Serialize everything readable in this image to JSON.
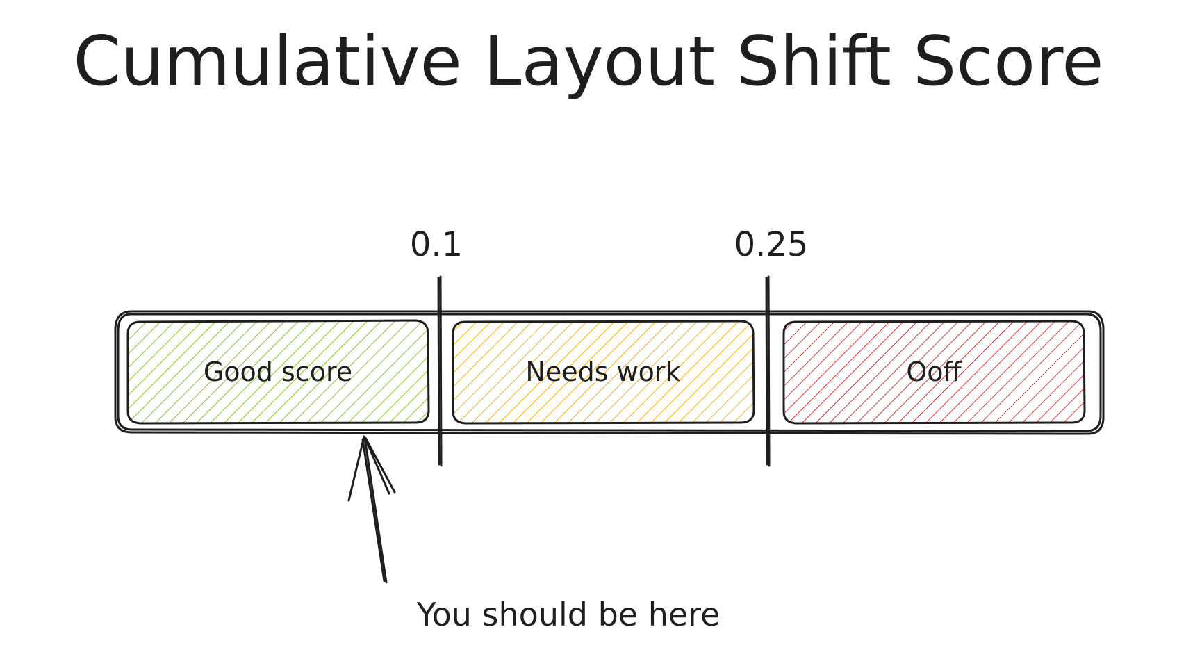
{
  "title": "Cumulative Layout Shift Score",
  "thresholds": [
    {
      "label": "0.1"
    },
    {
      "label": "0.25"
    }
  ],
  "segments": [
    {
      "label": "Good score",
      "color": "#40c057",
      "hatch": "#82c91e"
    },
    {
      "label": "Needs work",
      "color": "#fab005",
      "hatch": "#fab005"
    },
    {
      "label": "Ooff",
      "color": "#fa5252",
      "hatch": "#e03131"
    }
  ],
  "annotation": {
    "text": "You should be here"
  },
  "colors": {
    "ink": "#1e1e1e",
    "background": "#ffffff"
  }
}
